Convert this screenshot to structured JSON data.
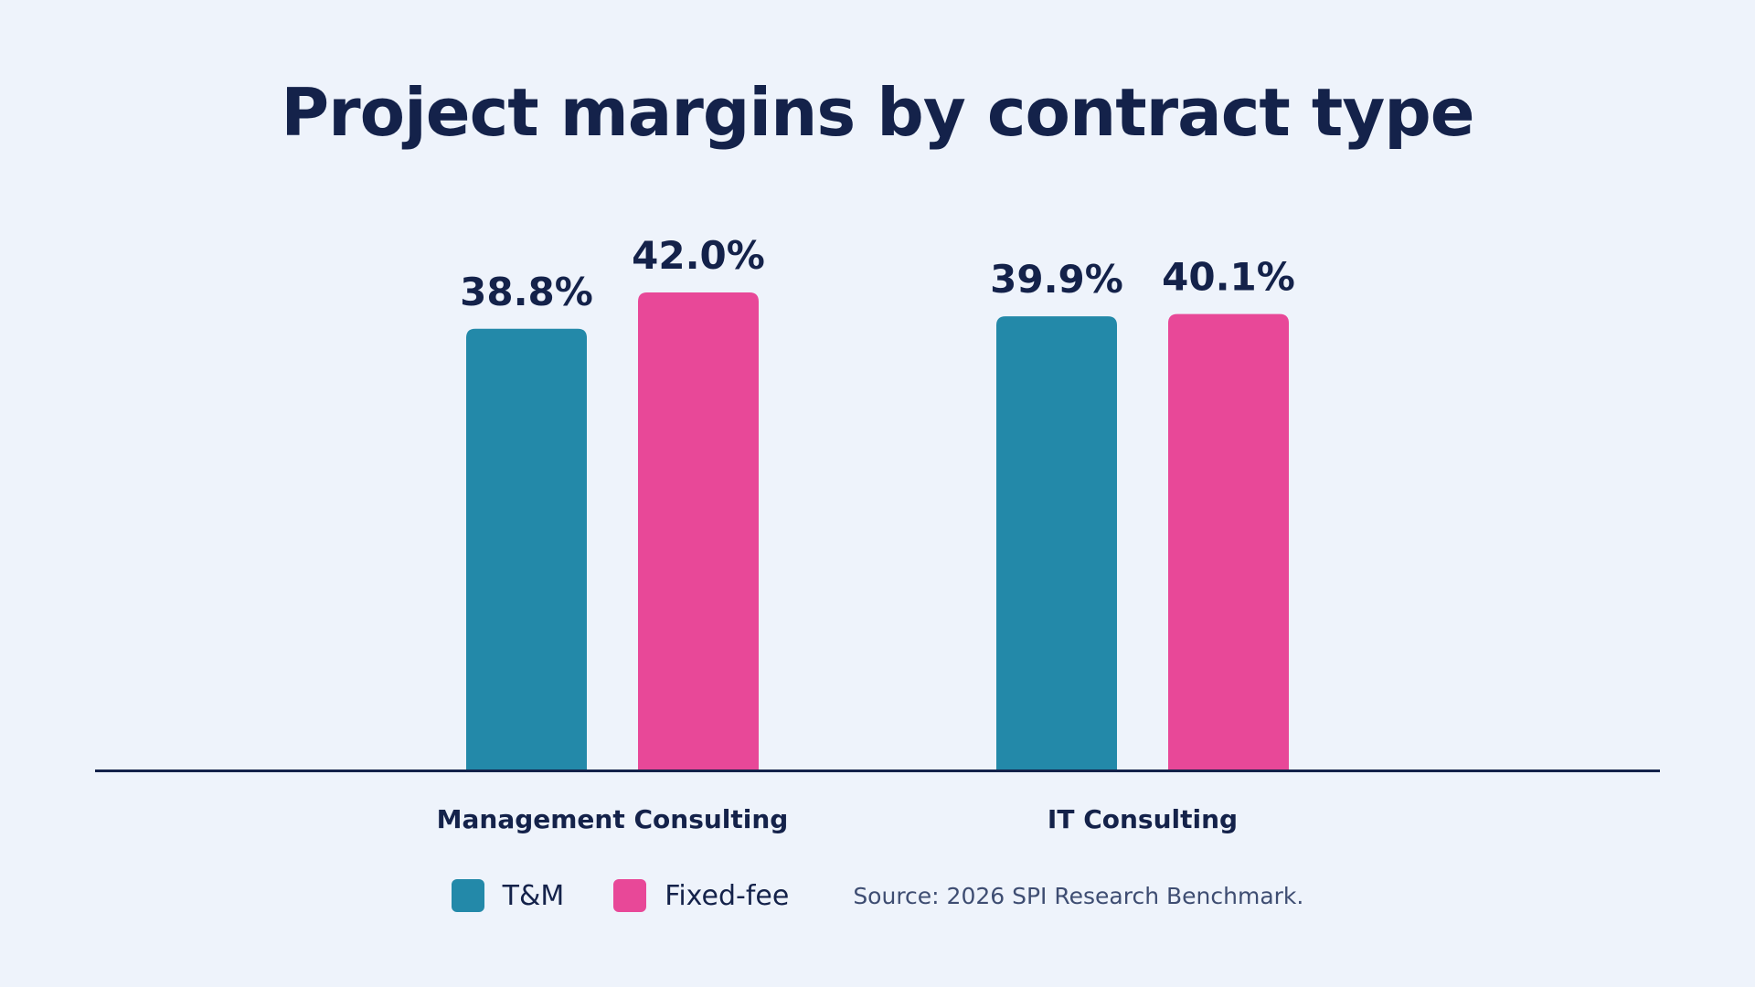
{
  "title": "Project margins by contract type",
  "source": "Source: 2026 SPI Research Benchmark.",
  "colors": {
    "background": "#eef3fb",
    "text": "#14224a",
    "tm": "#2389a9",
    "fixed_fee": "#e84898"
  },
  "chart_data": {
    "type": "bar",
    "categories": [
      "Management Consulting",
      "IT Consulting"
    ],
    "series": [
      {
        "name": "T&M",
        "color": "#2389a9",
        "values": [
          38.8,
          39.9
        ],
        "labels": [
          "38.8%",
          "39.9%"
        ]
      },
      {
        "name": "Fixed-fee",
        "color": "#e84898",
        "values": [
          42.0,
          40.1
        ],
        "labels": [
          "42.0%",
          "40.1%"
        ]
      }
    ],
    "ylim": [
      0,
      42.0
    ],
    "grid": false,
    "legend": "bottom",
    "xlabel": "",
    "ylabel": ""
  }
}
